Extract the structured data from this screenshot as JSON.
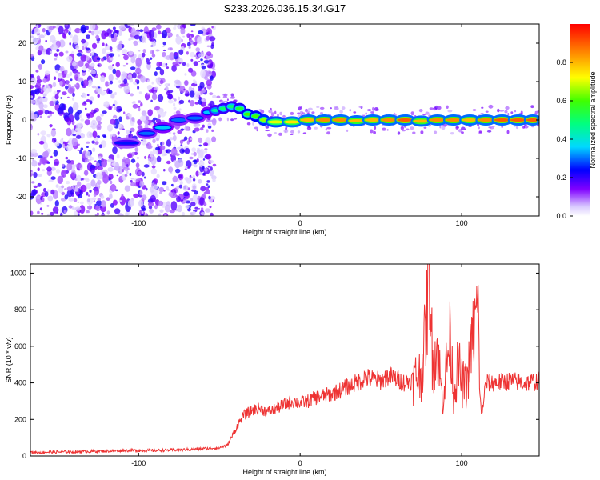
{
  "title": "S233.2026.036.15.34.G17",
  "colors": {
    "snr_line": "#ee3333",
    "axis": "#000000",
    "ridge_core": "#ff1010",
    "scatter": "#7a2be0"
  },
  "chart_data": [
    {
      "type": "heatmap",
      "name": "spectrogram",
      "xlabel": "Height of straight line (km)",
      "ylabel": "Frequency (Hz)",
      "xlim": [
        -167,
        148
      ],
      "ylim": [
        -25,
        25
      ],
      "xticks": [
        -100,
        0,
        100
      ],
      "xtick_labels": [
        "-100",
        "0",
        "100"
      ],
      "yticks": [
        -20,
        -10,
        0,
        10,
        20
      ],
      "ytick_labels": [
        "-20",
        "-10",
        "0",
        "10",
        "20"
      ],
      "grid": false,
      "noise_region_x": [
        -167,
        -53
      ],
      "ridge": {
        "x": [
          -115,
          -100,
          -90,
          -80,
          -70,
          -60,
          -55,
          -50,
          -45,
          -40,
          -35,
          -30,
          -25,
          -20,
          -10,
          0,
          10,
          20,
          30,
          40,
          50,
          60,
          70,
          80,
          90,
          100,
          110,
          120,
          130,
          140,
          148
        ],
        "frequency": [
          -6,
          -3.5,
          -2,
          0,
          0.5,
          2,
          2.5,
          3,
          3.5,
          3,
          1.5,
          1,
          0,
          -0.5,
          -0.5,
          0,
          0,
          0,
          -0.2,
          0,
          0,
          0,
          -0.3,
          0,
          0,
          0,
          0,
          0,
          0,
          0,
          0
        ],
        "amplitude": [
          0.25,
          0.3,
          0.35,
          0.3,
          0.3,
          0.35,
          0.45,
          0.5,
          0.5,
          0.55,
          0.6,
          0.6,
          0.65,
          0.7,
          0.75,
          0.8,
          0.85,
          0.85,
          0.8,
          0.8,
          0.85,
          0.9,
          0.8,
          0.85,
          0.85,
          0.8,
          0.85,
          0.9,
          0.9,
          0.9,
          0.9
        ]
      }
    },
    {
      "type": "colorbar",
      "name": "colorbar",
      "label": "Normalized spectral amplitude",
      "range": [
        0,
        1
      ],
      "ticks": [
        0,
        0.2,
        0.4,
        0.6,
        0.8
      ],
      "tick_labels": [
        "0.0",
        "0.2",
        "0.4",
        "0.6",
        "0.8"
      ]
    },
    {
      "type": "line",
      "name": "snr",
      "xlabel": "Height of straight line (km)",
      "ylabel": "SNR (10 * v/v)",
      "xlim": [
        -167,
        148
      ],
      "ylim": [
        0,
        1050
      ],
      "xticks": [
        -100,
        0,
        100
      ],
      "xtick_labels": [
        "-100",
        "0",
        "100"
      ],
      "yticks": [
        0,
        200,
        400,
        600,
        800,
        1000
      ],
      "ytick_labels": [
        "0",
        "200",
        "400",
        "600",
        "800",
        "1000"
      ],
      "grid": false,
      "series": [
        {
          "name": "SNR",
          "x": [
            -167,
            -150,
            -130,
            -110,
            -90,
            -70,
            -60,
            -50,
            -45,
            -42,
            -38,
            -35,
            -30,
            -25,
            -20,
            -15,
            -10,
            -5,
            0,
            5,
            10,
            15,
            20,
            25,
            30,
            35,
            40,
            45,
            50,
            55,
            60,
            65,
            70,
            75,
            78,
            80,
            82,
            85,
            88,
            90,
            93,
            95,
            98,
            100,
            103,
            106,
            110,
            112,
            115,
            120,
            130,
            140,
            148
          ],
          "y": [
            20,
            22,
            25,
            30,
            30,
            35,
            40,
            45,
            60,
            110,
            180,
            220,
            250,
            260,
            240,
            260,
            280,
            300,
            290,
            300,
            320,
            330,
            340,
            360,
            380,
            400,
            430,
            420,
            410,
            440,
            420,
            400,
            420,
            450,
            700,
            1040,
            500,
            600,
            300,
            450,
            650,
            350,
            500,
            400,
            380,
            600,
            820,
            200,
            400,
            400,
            410,
            400,
            410
          ]
        }
      ]
    }
  ]
}
